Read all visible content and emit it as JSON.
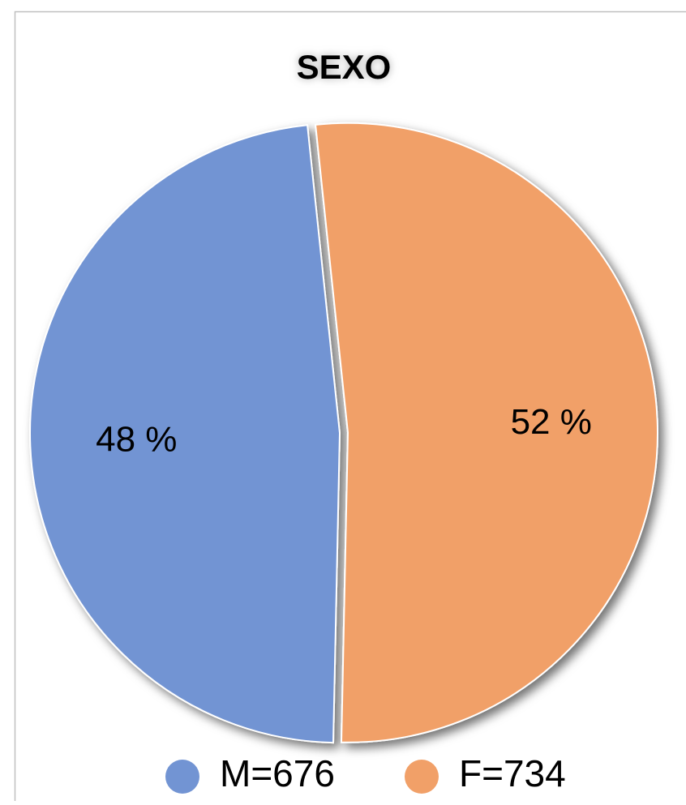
{
  "chart_data": {
    "type": "pie",
    "title": "SEXO",
    "categories": [
      "M=676",
      "F=734"
    ],
    "values": [
      48,
      52
    ],
    "value_labels": [
      "48 %",
      "52 %"
    ],
    "colors": [
      "#7294d3",
      "#f1a068"
    ]
  }
}
